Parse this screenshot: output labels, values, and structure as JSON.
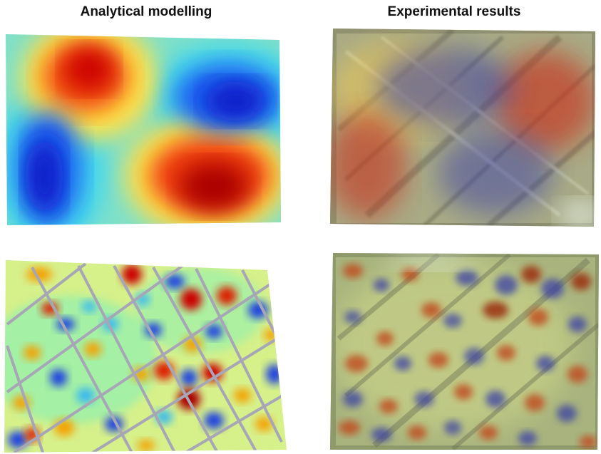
{
  "titles": {
    "left": "Analytical modelling",
    "right": "Experimental results"
  },
  "colors": {
    "hot": "#cc0000",
    "warm": "#ffd21a",
    "cool": "#1a2fd6",
    "cyan": "#46d8ec",
    "mid": "#8ef0a6",
    "photo_base": "#9fa07a",
    "photo_overlay_hot": "#c7331c",
    "photo_overlay_cool": "#3a3fa4",
    "rib_gray": "#a8a8b4"
  },
  "panels": {
    "tl": "analytical-mode-low",
    "tr": "experimental-mode-low",
    "bl": "analytical-mode-high",
    "br": "experimental-mode-high"
  }
}
